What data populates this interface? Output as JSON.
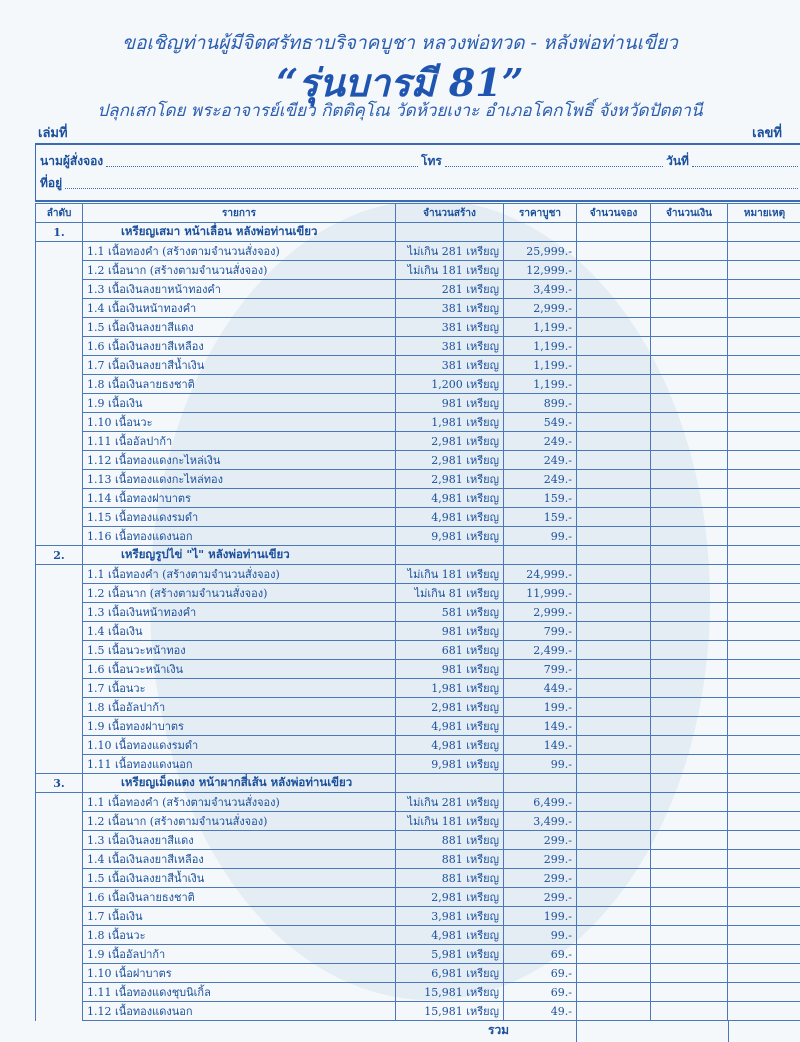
{
  "header": {
    "invite": "ขอเชิญท่านผู้มีจิตศรัทธาบริจาคบูชา หลวงพ่อทวด - หลังพ่อท่านเขียว",
    "series": "“รุ่นบารมี 81”",
    "consecrated_by": "ปลุกเสกโดย  พระอาจารย์เขียว กิตติคุโณ  วัดห้วยเงาะ  อำเภอโคกโพธิ์  จังหวัดปัตตานี",
    "book_no_label": "เล่มที่",
    "number_label": "เลขที่"
  },
  "form": {
    "name_label": "นามผู้สั่งจอง",
    "phone_label": "โทร",
    "date_label": "วันที่",
    "address_label": "ที่อยู่"
  },
  "table": {
    "columns": [
      "ลำดับ",
      "รายการ",
      "จำนวนสร้าง",
      "ราคาบูชา",
      "จำนวนจอง",
      "จำนวนเงิน",
      "หมายเหตุ"
    ],
    "sections": [
      {
        "no": "1.",
        "title": "เหรียญเสมา หน้าเลื่อน หลังพ่อท่านเขียว",
        "items": [
          [
            "1.1 เนื้อทองคำ (สร้างตามจำนวนสั่งจอง)",
            "ไม่เกิน 281 เหรียญ",
            "25,999.-"
          ],
          [
            "1.2 เนื้อนาก (สร้างตามจำนวนสั่งจอง)",
            "ไม่เกิน 181 เหรียญ",
            "12,999.-"
          ],
          [
            "1.3 เนื้อเงินลงยาหน้าทองคำ",
            "281 เหรียญ",
            "3,499.-"
          ],
          [
            "1.4 เนื้อเงินหน้าทองคำ",
            "381 เหรียญ",
            "2,999.-"
          ],
          [
            "1.5 เนื้อเงินลงยาสีแดง",
            "381 เหรียญ",
            "1,199.-"
          ],
          [
            "1.6 เนื้อเงินลงยาสีเหลือง",
            "381 เหรียญ",
            "1,199.-"
          ],
          [
            "1.7 เนื้อเงินลงยาสีน้ำเงิน",
            "381 เหรียญ",
            "1,199.-"
          ],
          [
            "1.8 เนื้อเงินลายธงชาติ",
            "1,200 เหรียญ",
            "1,199.-"
          ],
          [
            "1.9 เนื้อเงิน",
            "981 เหรียญ",
            "899.-"
          ],
          [
            "1.10 เนื้อนวะ",
            "1,981 เหรียญ",
            "549.-"
          ],
          [
            "1.11 เนื้ออัลปาก้า",
            "2,981 เหรียญ",
            "249.-"
          ],
          [
            "1.12 เนื้อทองแดงกะไหล่เงิน",
            "2,981 เหรียญ",
            "249.-"
          ],
          [
            "1.13 เนื้อทองแดงกะไหล่ทอง",
            "2,981 เหรียญ",
            "249.-"
          ],
          [
            "1.14 เนื้อทองฝาบาตร",
            "4,981 เหรียญ",
            "159.-"
          ],
          [
            "1.15 เนื้อทองแดงรมดำ",
            "4,981 เหรียญ",
            "159.-"
          ],
          [
            "1.16 เนื้อทองแดงนอก",
            "9,981 เหรียญ",
            "99.-"
          ]
        ]
      },
      {
        "no": "2.",
        "title": "เหรียญรูปไข่ \"ไ\" หลังพ่อท่านเขียว",
        "items": [
          [
            "1.1 เนื้อทองคำ (สร้างตามจำนวนสั่งจอง)",
            "ไม่เกิน 181 เหรียญ",
            "24,999.-"
          ],
          [
            "1.2 เนื้อนาก (สร้างตามจำนวนสั่งจอง)",
            "ไม่เกิน  81 เหรียญ",
            "11,999.-"
          ],
          [
            "1.3 เนื้อเงินหน้าทองคำ",
            "581 เหรียญ",
            "2,999.-"
          ],
          [
            "1.4 เนื้อเงิน",
            "981 เหรียญ",
            "799.-"
          ],
          [
            "1.5 เนื้อนวะหน้าทอง",
            "681 เหรียญ",
            "2,499.-"
          ],
          [
            "1.6 เนื้อนวะหน้าเงิน",
            "981 เหรียญ",
            "799.-"
          ],
          [
            "1.7 เนื้อนวะ",
            "1,981 เหรียญ",
            "449.-"
          ],
          [
            "1.8 เนื้ออัลปาก้า",
            "2,981 เหรียญ",
            "199.-"
          ],
          [
            "1.9 เนื้อทองฝาบาตร",
            "4,981 เหรียญ",
            "149.-"
          ],
          [
            "1.10 เนื้อทองแดงรมดำ",
            "4,981 เหรียญ",
            "149.-"
          ],
          [
            "1.11 เนื้อทองแดงนอก",
            "9,981 เหรียญ",
            "99.-"
          ]
        ]
      },
      {
        "no": "3.",
        "title": "เหรียญเม็ดแตง หน้าผากสี่เส้น หลังพ่อท่านเขียว",
        "items": [
          [
            "1.1 เนื้อทองคำ (สร้างตามจำนวนสั่งจอง)",
            "ไม่เกิน 281 เหรียญ",
            "6,499.-"
          ],
          [
            "1.2 เนื้อนาก (สร้างตามจำนวนสั่งจอง)",
            "ไม่เกิน 181 เหรียญ",
            "3,499.-"
          ],
          [
            "1.3 เนื้อเงินลงยาสีแดง",
            "881 เหรียญ",
            "299.-"
          ],
          [
            "1.4 เนื้อเงินลงยาสีเหลือง",
            "881 เหรียญ",
            "299.-"
          ],
          [
            "1.5 เนื้อเงินลงยาสีน้ำเงิน",
            "881 เหรียญ",
            "299.-"
          ],
          [
            "1.6 เนื้อเงินลายธงชาติ",
            "2,981 เหรียญ",
            "299.-"
          ],
          [
            "1.7 เนื้อเงิน",
            "3,981 เหรียญ",
            "199.-"
          ],
          [
            "1.8 เนื้อนวะ",
            "4,981 เหรียญ",
            "99.-"
          ],
          [
            "1.9 เนื้ออัลปาก้า",
            "5,981 เหรียญ",
            "69.-"
          ],
          [
            "1.10 เนื้อฝาบาตร",
            "6,981 เหรียญ",
            "69.-"
          ],
          [
            "1.11 เนื้อทองแดงชุบนิเกิ้ล",
            "15,981 เหรียญ",
            "69.-"
          ],
          [
            "1.12 เนื้อทองแดงนอก",
            "15,981 เหรียญ",
            "49.-"
          ]
        ]
      }
    ],
    "total_label": "รวม"
  }
}
